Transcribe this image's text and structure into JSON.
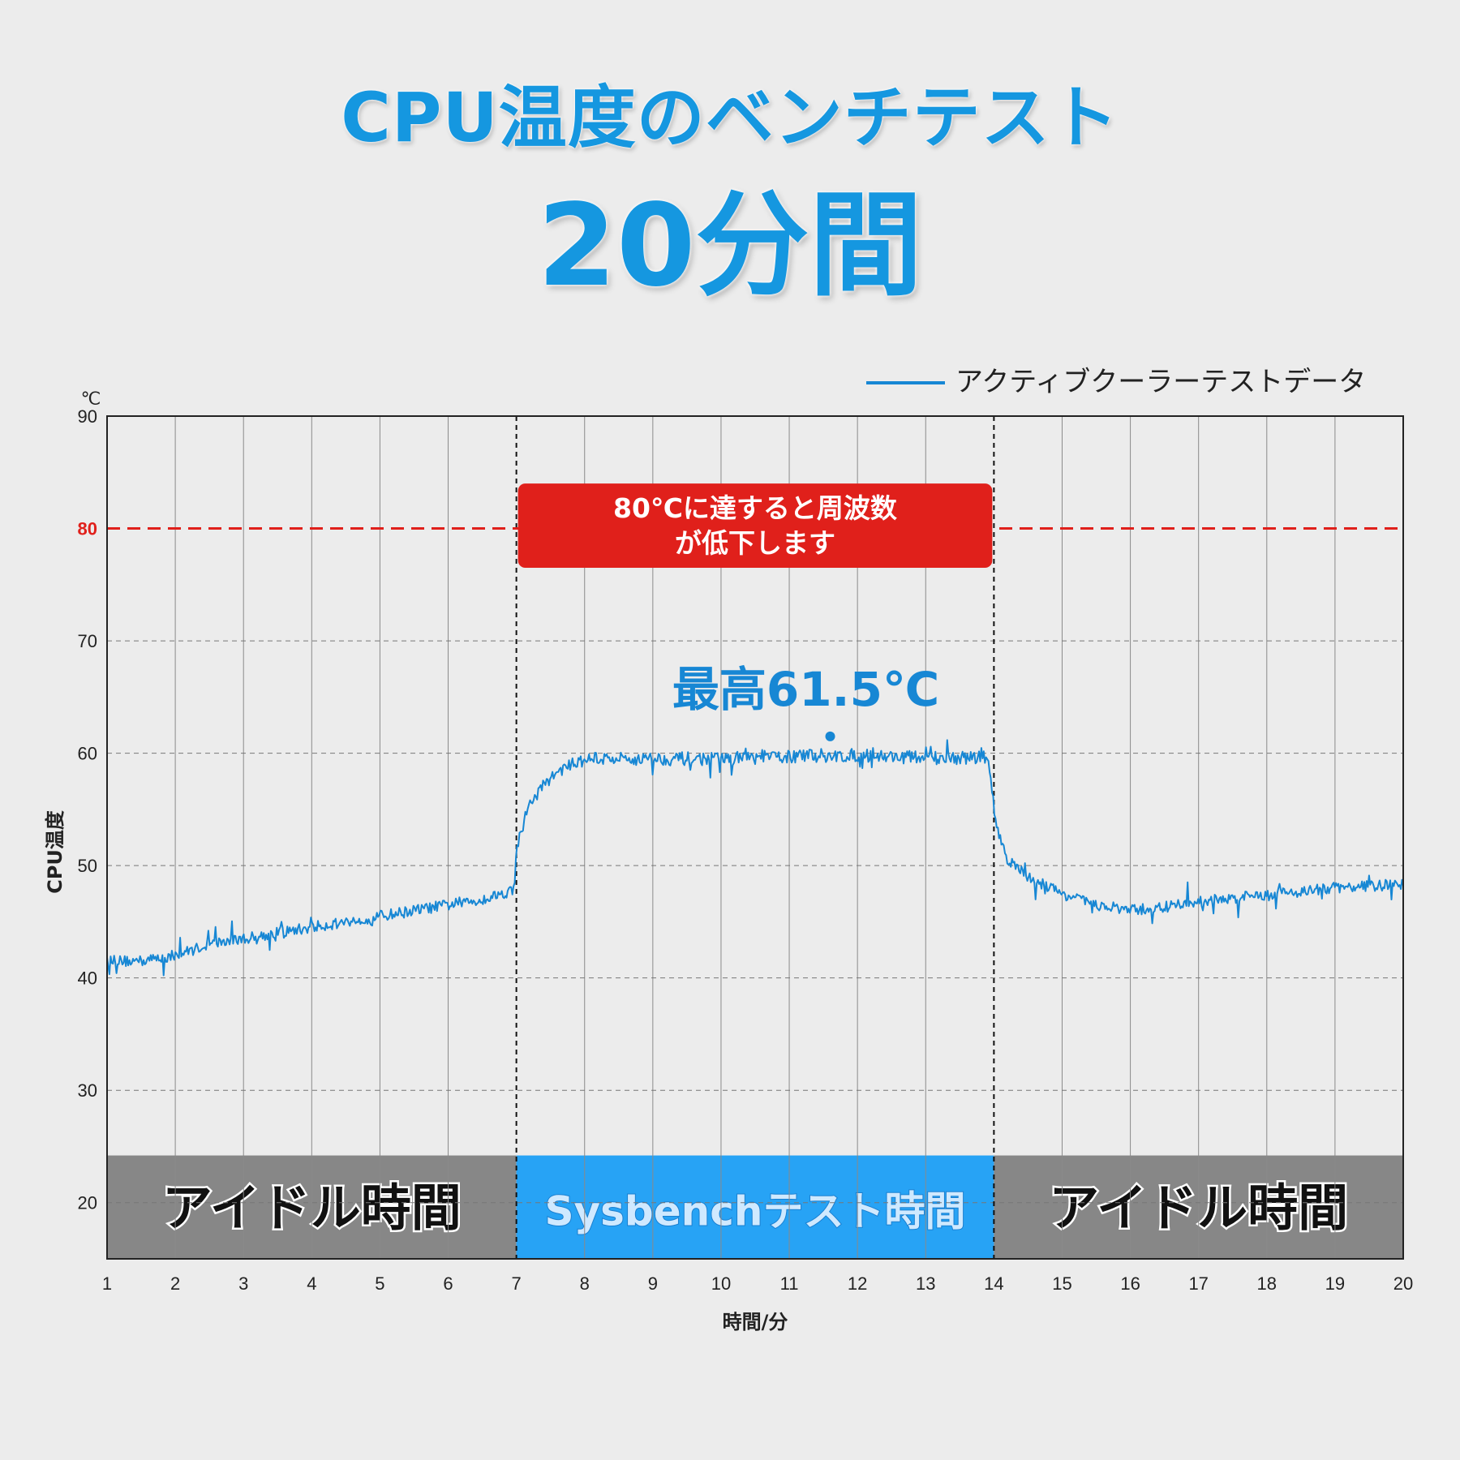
{
  "header": {
    "title": "CPU温度のベンチテスト",
    "subtitle": "20分間"
  },
  "colors": {
    "line": "#1787d4",
    "limit": "#e0201b",
    "idle_band": "#878787",
    "test_band": "#27a3f5",
    "title": "#1597e0"
  },
  "chart_data": {
    "type": "line",
    "title": "",
    "xlabel": "時間/分",
    "ylabel": "CPU温度",
    "yunit": "℃",
    "xlim": [
      1,
      20
    ],
    "ylim": [
      15,
      90
    ],
    "x_ticks": [
      1,
      2,
      3,
      4,
      5,
      6,
      7,
      8,
      9,
      10,
      11,
      12,
      13,
      14,
      15,
      16,
      17,
      18,
      19,
      20
    ],
    "y_ticks": [
      20,
      30,
      40,
      50,
      60,
      70,
      80,
      90
    ],
    "grid": true,
    "legend": {
      "position": "top-right",
      "entries": [
        "アクティブクーラーテストデータ"
      ]
    },
    "series": [
      {
        "name": "アクティブクーラーテストデータ",
        "x": [
          1,
          1.5,
          2,
          2.5,
          3,
          3.5,
          4,
          4.5,
          5,
          5.5,
          6,
          6.5,
          6.95,
          7.02,
          7.2,
          7.4,
          7.6,
          7.8,
          8,
          9,
          10,
          11,
          12,
          13,
          13.92,
          14.02,
          14.2,
          14.5,
          15,
          15.5,
          16,
          16.5,
          17,
          17.5,
          18,
          18.5,
          19,
          19.5,
          20
        ],
        "y": [
          41.5,
          41.5,
          42.0,
          43.0,
          43.5,
          44.0,
          44.5,
          45.0,
          45.5,
          46.0,
          46.5,
          47.0,
          47.8,
          52.0,
          55.5,
          57.2,
          58.3,
          59.0,
          59.5,
          59.5,
          59.5,
          59.7,
          59.8,
          59.6,
          59.6,
          54.0,
          50.5,
          49.0,
          47.5,
          46.5,
          46.0,
          46.3,
          46.8,
          47.1,
          47.4,
          47.7,
          48.0,
          48.2,
          48.3
        ]
      }
    ],
    "threshold": {
      "value": 80,
      "label": "80"
    },
    "annotations": {
      "limit_box": {
        "line1": "80℃に達すると周波数",
        "line2": "が低下します",
        "x_start": 7,
        "x_end": 14,
        "y_top": 84,
        "y_bottom": 76.5
      },
      "peak": {
        "label": "最高61.5℃",
        "x": 11.6,
        "y": 61.5
      },
      "phase_dividers": [
        7,
        14
      ]
    },
    "bands": [
      {
        "label": "アイドル時間",
        "x_start": 1,
        "x_end": 7,
        "kind": "idle"
      },
      {
        "label": "Sysbenchテスト時間",
        "x_start": 7,
        "x_end": 14,
        "kind": "test"
      },
      {
        "label": "アイドル時間",
        "x_start": 14,
        "x_end": 20,
        "kind": "idle"
      }
    ],
    "band_range": [
      15,
      24.2
    ]
  }
}
